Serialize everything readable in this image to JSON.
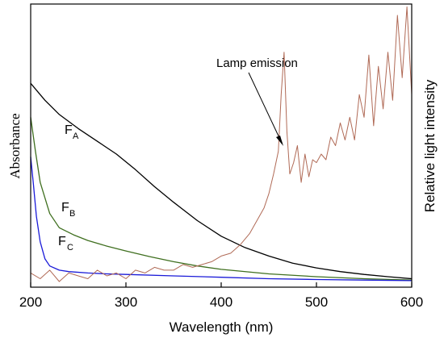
{
  "chart_data": {
    "type": "line",
    "xlabel": "Wavelength (nm)",
    "ylabel_left": "Absorbance",
    "ylabel_right": "Relative light intensity",
    "xlim": [
      200,
      600
    ],
    "ylim": [
      0,
      1
    ],
    "xticks": [
      "200",
      "300",
      "400",
      "500",
      "600"
    ],
    "annotation": "Lamp emission",
    "curve_labels": [
      {
        "main": "F",
        "sub": "A"
      },
      {
        "main": "F",
        "sub": "B"
      },
      {
        "main": "F",
        "sub": "C"
      }
    ],
    "series": [
      {
        "color": "#000000",
        "x": [
          200,
          215,
          230,
          250,
          270,
          290,
          310,
          330,
          350,
          375,
          400,
          425,
          450,
          475,
          500,
          525,
          550,
          575,
          600
        ],
        "y": [
          0.72,
          0.66,
          0.61,
          0.56,
          0.515,
          0.47,
          0.415,
          0.355,
          0.3,
          0.235,
          0.18,
          0.14,
          0.11,
          0.085,
          0.068,
          0.055,
          0.045,
          0.037,
          0.03
        ]
      },
      {
        "color": "#3f6f1f",
        "x": [
          200,
          205,
          210,
          220,
          230,
          245,
          260,
          280,
          300,
          325,
          350,
          375,
          400,
          450,
          500,
          550,
          600
        ],
        "y": [
          0.6,
          0.48,
          0.37,
          0.26,
          0.21,
          0.185,
          0.165,
          0.145,
          0.128,
          0.108,
          0.09,
          0.075,
          0.063,
          0.047,
          0.037,
          0.03,
          0.025
        ]
      },
      {
        "color": "#1a1ad8",
        "x": [
          200,
          203,
          206,
          210,
          215,
          220,
          230,
          240,
          260,
          280,
          300,
          350,
          400,
          450,
          500,
          550,
          600
        ],
        "y": [
          0.46,
          0.36,
          0.25,
          0.16,
          0.1,
          0.075,
          0.06,
          0.055,
          0.05,
          0.047,
          0.045,
          0.04,
          0.035,
          0.03,
          0.027,
          0.025,
          0.023
        ]
      },
      {
        "color": "#b06a56",
        "x": [
          200,
          210,
          220,
          230,
          240,
          250,
          260,
          270,
          280,
          290,
          300,
          310,
          320,
          330,
          340,
          350,
          360,
          370,
          380,
          390,
          400,
          410,
          420,
          430,
          440,
          445,
          450,
          455,
          460,
          463,
          466,
          469,
          472,
          476,
          480,
          484,
          488,
          492,
          496,
          500,
          505,
          510,
          515,
          520,
          525,
          530,
          535,
          540,
          545,
          550,
          555,
          560,
          565,
          570,
          575,
          580,
          585,
          590,
          595,
          600
        ],
        "y": [
          0.05,
          0.03,
          0.06,
          0.02,
          0.05,
          0.04,
          0.03,
          0.06,
          0.04,
          0.05,
          0.03,
          0.06,
          0.05,
          0.07,
          0.06,
          0.06,
          0.08,
          0.07,
          0.08,
          0.09,
          0.11,
          0.12,
          0.15,
          0.19,
          0.25,
          0.28,
          0.33,
          0.4,
          0.48,
          0.68,
          0.83,
          0.55,
          0.4,
          0.44,
          0.5,
          0.37,
          0.47,
          0.39,
          0.45,
          0.44,
          0.47,
          0.45,
          0.53,
          0.5,
          0.58,
          0.52,
          0.6,
          0.52,
          0.68,
          0.6,
          0.82,
          0.57,
          0.78,
          0.63,
          0.83,
          0.66,
          0.96,
          0.74,
          0.99,
          0.68
        ]
      }
    ]
  }
}
